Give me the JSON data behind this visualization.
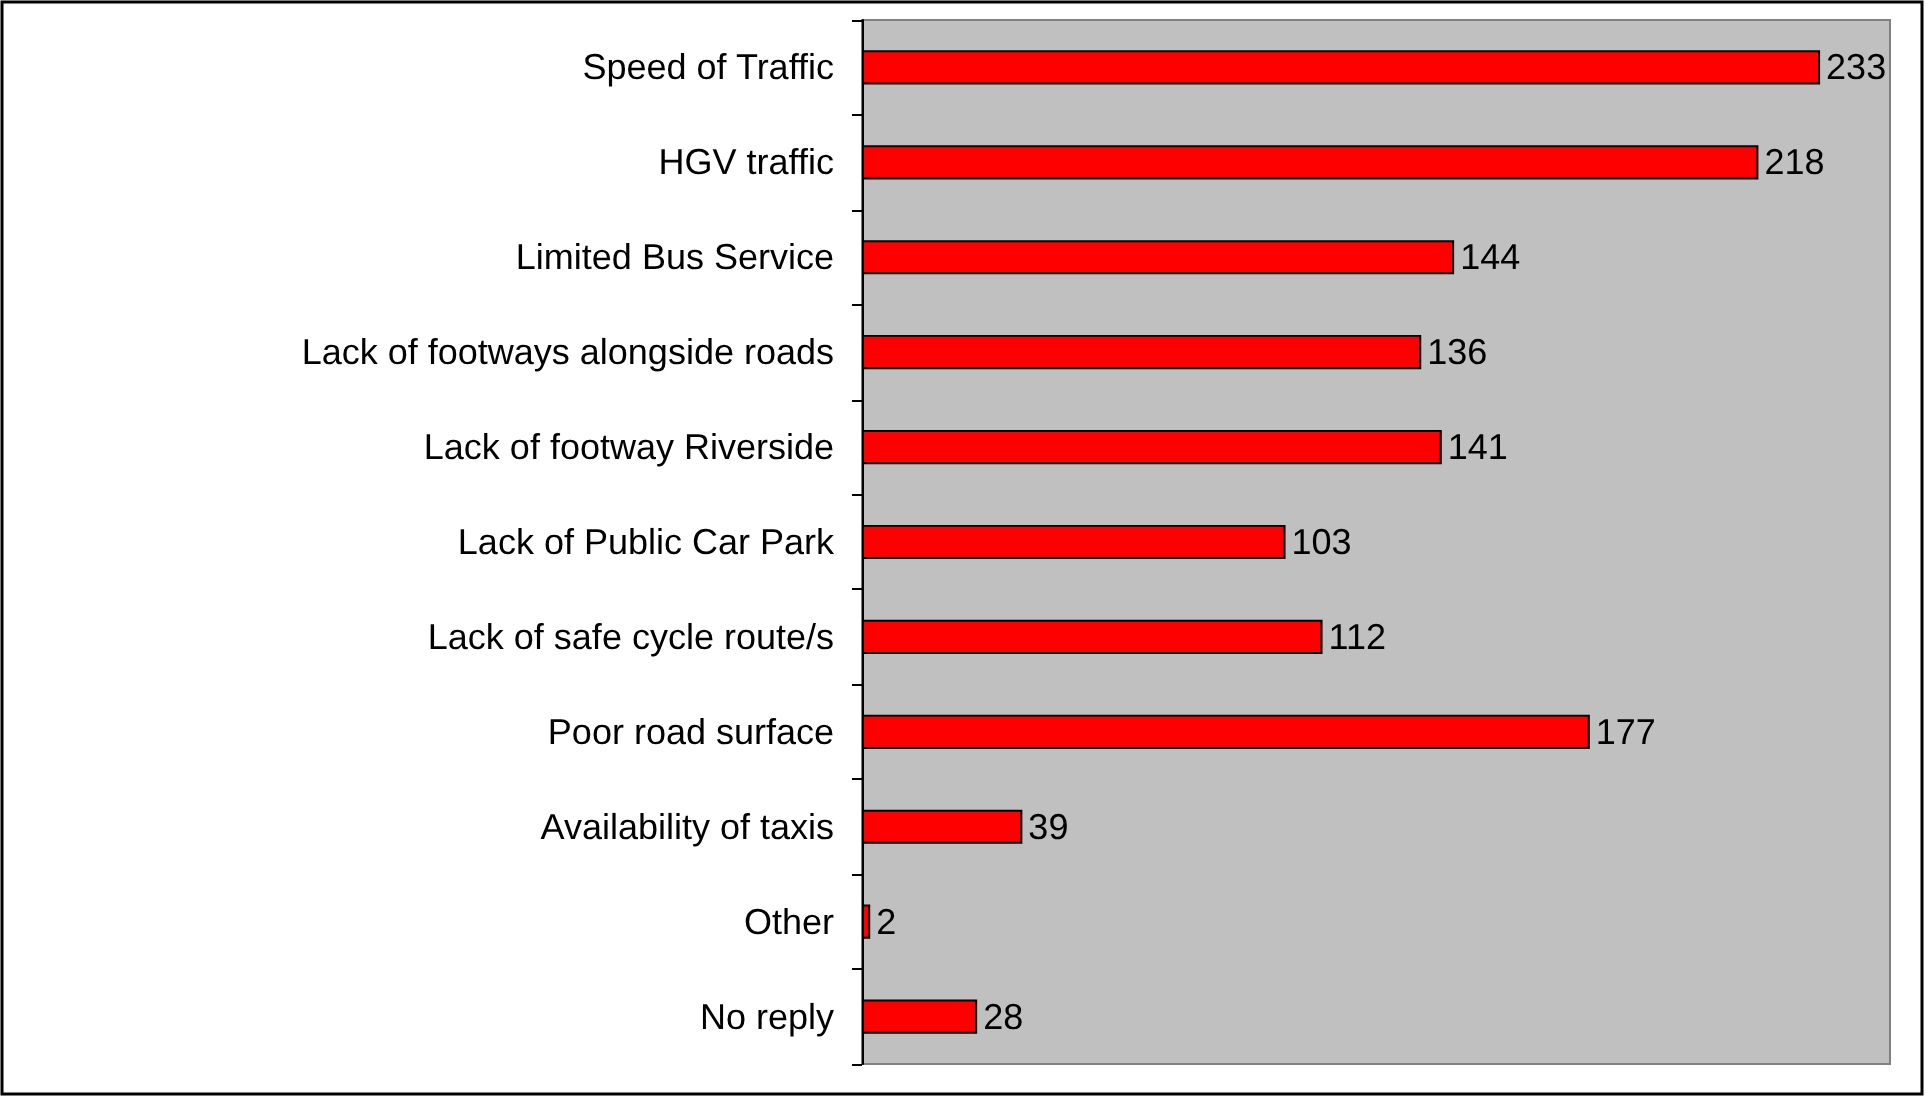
{
  "chart_data": {
    "type": "bar",
    "orientation": "horizontal",
    "categories": [
      "Speed of Traffic",
      "HGV traffic",
      "Limited Bus Service",
      "Lack of footways alongside roads",
      "Lack of footway Riverside",
      "Lack of Public Car Park",
      "Lack of safe cycle route/s",
      "Poor road surface",
      "Availability of taxis",
      "Other",
      "No reply"
    ],
    "values": [
      233,
      218,
      144,
      136,
      141,
      103,
      112,
      177,
      39,
      2,
      28
    ],
    "color": "#ff0000",
    "data_labels": true
  }
}
